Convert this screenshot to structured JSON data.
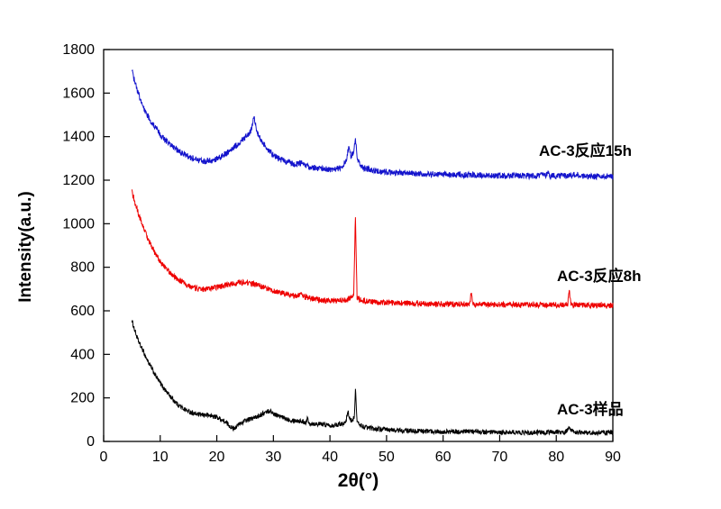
{
  "chart_data": {
    "type": "line",
    "title": "",
    "xlabel": "2θ(°)",
    "ylabel": "Intensity(a.u.)",
    "xlim": [
      0,
      90
    ],
    "ylim": [
      0,
      1800
    ],
    "xtick": 10,
    "ytick": 200,
    "grid": false,
    "legend_position": "labels-at-right-of-each-trace",
    "series": [
      {
        "name": "AC-3样品",
        "color": "#000000",
        "noise": 11,
        "points": [
          [
            5,
            555
          ],
          [
            5.5,
            510
          ],
          [
            6,
            470
          ],
          [
            6.5,
            440
          ],
          [
            7,
            415
          ],
          [
            7.5,
            385
          ],
          [
            8,
            360
          ],
          [
            9,
            310
          ],
          [
            10,
            268
          ],
          [
            11,
            232
          ],
          [
            12,
            200
          ],
          [
            13,
            172
          ],
          [
            14,
            152
          ],
          [
            15,
            138
          ],
          [
            16,
            128
          ],
          [
            17,
            122
          ],
          [
            18,
            122
          ],
          [
            19,
            118
          ],
          [
            20,
            112
          ],
          [
            21,
            98
          ],
          [
            22,
            78
          ],
          [
            22.8,
            60
          ],
          [
            23.5,
            68
          ],
          [
            24,
            80
          ],
          [
            25,
            95
          ],
          [
            26,
            103
          ],
          [
            27,
            112
          ],
          [
            28,
            126
          ],
          [
            29,
            138
          ],
          [
            29.5,
            140
          ],
          [
            30,
            128
          ],
          [
            31,
            116
          ],
          [
            32,
            106
          ],
          [
            33,
            100
          ],
          [
            34,
            96
          ],
          [
            35,
            92
          ],
          [
            35.8,
            88
          ],
          [
            36,
            108
          ],
          [
            36.3,
            84
          ],
          [
            37,
            82
          ],
          [
            38,
            80
          ],
          [
            39,
            77
          ],
          [
            40,
            75
          ],
          [
            41,
            76
          ],
          [
            42,
            82
          ],
          [
            42.8,
            88
          ],
          [
            43.2,
            138
          ],
          [
            43.6,
            96
          ],
          [
            44.3,
            105
          ],
          [
            44.5,
            240
          ],
          [
            44.8,
            88
          ],
          [
            45.5,
            72
          ],
          [
            46,
            66
          ],
          [
            47,
            62
          ],
          [
            48,
            58
          ],
          [
            50,
            54
          ],
          [
            52,
            50
          ],
          [
            55,
            48
          ],
          [
            58,
            46
          ],
          [
            60,
            45
          ],
          [
            62,
            44
          ],
          [
            65,
            46
          ],
          [
            68,
            42
          ],
          [
            70,
            40
          ],
          [
            72,
            42
          ],
          [
            75,
            40
          ],
          [
            78,
            42
          ],
          [
            80,
            44
          ],
          [
            81.5,
            42
          ],
          [
            82.3,
            58
          ],
          [
            83,
            42
          ],
          [
            85,
            40
          ],
          [
            87,
            40
          ],
          [
            89,
            42
          ],
          [
            90,
            40
          ]
        ]
      },
      {
        "name": "AC-3反应8h",
        "color": "#ee0000",
        "noise": 13,
        "points": [
          [
            5,
            1145
          ],
          [
            5.5,
            1100
          ],
          [
            6,
            1058
          ],
          [
            6.5,
            1020
          ],
          [
            7,
            985
          ],
          [
            7.5,
            952
          ],
          [
            8,
            922
          ],
          [
            9,
            868
          ],
          [
            10,
            826
          ],
          [
            11,
            795
          ],
          [
            12,
            768
          ],
          [
            13,
            748
          ],
          [
            14,
            730
          ],
          [
            15,
            716
          ],
          [
            16,
            706
          ],
          [
            17,
            700
          ],
          [
            18,
            698
          ],
          [
            19,
            702
          ],
          [
            20,
            708
          ],
          [
            21,
            714
          ],
          [
            22,
            720
          ],
          [
            23,
            726
          ],
          [
            24,
            730
          ],
          [
            25,
            730
          ],
          [
            26,
            726
          ],
          [
            27,
            720
          ],
          [
            28,
            712
          ],
          [
            29,
            702
          ],
          [
            30,
            692
          ],
          [
            31,
            684
          ],
          [
            32,
            678
          ],
          [
            33,
            672
          ],
          [
            34,
            668
          ],
          [
            35,
            678
          ],
          [
            35.5,
            664
          ],
          [
            36,
            660
          ],
          [
            37,
            655
          ],
          [
            38,
            650
          ],
          [
            39,
            648
          ],
          [
            40,
            646
          ],
          [
            41,
            645
          ],
          [
            42,
            646
          ],
          [
            43,
            650
          ],
          [
            43.8,
            658
          ],
          [
            44.2,
            668
          ],
          [
            44.5,
            1030
          ],
          [
            44.8,
            662
          ],
          [
            45.2,
            652
          ],
          [
            46,
            646
          ],
          [
            47,
            642
          ],
          [
            48,
            640
          ],
          [
            50,
            637
          ],
          [
            52,
            636
          ],
          [
            55,
            634
          ],
          [
            58,
            632
          ],
          [
            60,
            631
          ],
          [
            62,
            630
          ],
          [
            64.7,
            632
          ],
          [
            65,
            688
          ],
          [
            65.3,
            630
          ],
          [
            67,
            629
          ],
          [
            70,
            628
          ],
          [
            72,
            628
          ],
          [
            75,
            627
          ],
          [
            78,
            627
          ],
          [
            80,
            627
          ],
          [
            82,
            630
          ],
          [
            82.3,
            692
          ],
          [
            82.6,
            627
          ],
          [
            84,
            626
          ],
          [
            86,
            625
          ],
          [
            88,
            625
          ],
          [
            90,
            624
          ]
        ]
      },
      {
        "name": "AC-3反应15h",
        "color": "#1414cc",
        "noise": 14,
        "points": [
          [
            5,
            1705
          ],
          [
            5.5,
            1650
          ],
          [
            6,
            1608
          ],
          [
            6.5,
            1570
          ],
          [
            7,
            1538
          ],
          [
            7.5,
            1510
          ],
          [
            8,
            1486
          ],
          [
            9,
            1444
          ],
          [
            10,
            1410
          ],
          [
            11,
            1382
          ],
          [
            12,
            1358
          ],
          [
            13,
            1338
          ],
          [
            14,
            1322
          ],
          [
            15,
            1308
          ],
          [
            16,
            1298
          ],
          [
            17,
            1290
          ],
          [
            18,
            1286
          ],
          [
            19,
            1290
          ],
          [
            20,
            1298
          ],
          [
            21,
            1312
          ],
          [
            22,
            1330
          ],
          [
            23,
            1350
          ],
          [
            24,
            1372
          ],
          [
            25,
            1395
          ],
          [
            25.5,
            1408
          ],
          [
            26,
            1425
          ],
          [
            26.4,
            1468
          ],
          [
            26.6,
            1498
          ],
          [
            26.9,
            1445
          ],
          [
            27.3,
            1408
          ],
          [
            28,
            1375
          ],
          [
            29,
            1342
          ],
          [
            30,
            1315
          ],
          [
            31,
            1298
          ],
          [
            32,
            1288
          ],
          [
            33,
            1278
          ],
          [
            34,
            1272
          ],
          [
            35,
            1282
          ],
          [
            35.5,
            1268
          ],
          [
            36,
            1264
          ],
          [
            37,
            1258
          ],
          [
            38,
            1254
          ],
          [
            39,
            1251
          ],
          [
            40,
            1250
          ],
          [
            41,
            1252
          ],
          [
            42,
            1258
          ],
          [
            42.8,
            1285
          ],
          [
            43.3,
            1348
          ],
          [
            43.7,
            1308
          ],
          [
            44.2,
            1330
          ],
          [
            44.5,
            1385
          ],
          [
            44.9,
            1295
          ],
          [
            45.4,
            1268
          ],
          [
            46,
            1256
          ],
          [
            47,
            1248
          ],
          [
            48,
            1242
          ],
          [
            50,
            1237
          ],
          [
            52,
            1234
          ],
          [
            55,
            1230
          ],
          [
            58,
            1228
          ],
          [
            60,
            1226
          ],
          [
            62,
            1225
          ],
          [
            65,
            1224
          ],
          [
            68,
            1222
          ],
          [
            70,
            1221
          ],
          [
            72,
            1221
          ],
          [
            75,
            1220
          ],
          [
            78.2,
            1222
          ],
          [
            78.5,
            1242
          ],
          [
            78.9,
            1220
          ],
          [
            80,
            1219
          ],
          [
            82,
            1220
          ],
          [
            83,
            1224
          ],
          [
            85,
            1218
          ],
          [
            87,
            1217
          ],
          [
            89,
            1218
          ],
          [
            90,
            1216
          ]
        ]
      }
    ]
  }
}
